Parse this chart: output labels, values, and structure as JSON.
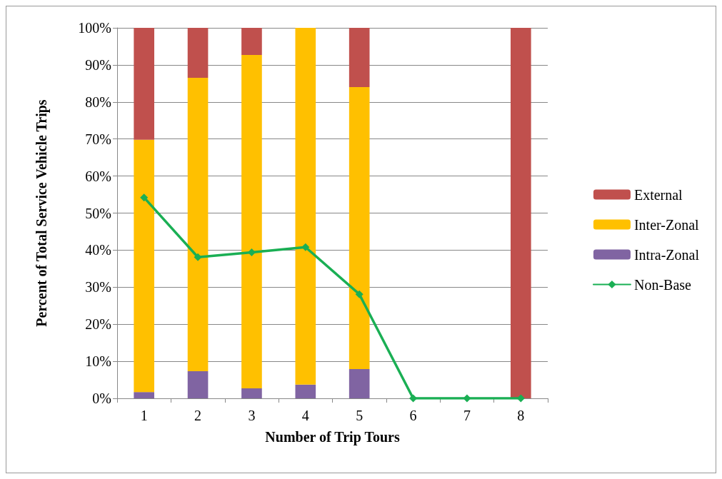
{
  "chart_data": {
    "type": "bar",
    "stacked": true,
    "xlabel": "Number of Trip Tours",
    "ylabel": "Percent of Total Service Vehicle Trips",
    "categories": [
      "1",
      "2",
      "3",
      "4",
      "5",
      "6",
      "7",
      "8"
    ],
    "series": [
      {
        "name": "Intra-Zonal",
        "color": "#8064a2",
        "values": [
          1.7,
          7.3,
          2.7,
          3.7,
          7.9,
          0,
          0,
          0
        ]
      },
      {
        "name": "Inter-Zonal",
        "color": "#ffc000",
        "values": [
          68.1,
          79.2,
          90,
          96.3,
          76.1,
          0,
          0,
          0
        ]
      },
      {
        "name": "External",
        "color": "#c0504d",
        "values": [
          30.2,
          13.5,
          7.3,
          0,
          16,
          0,
          0,
          100
        ]
      },
      {
        "name": "Non-Base",
        "type": "line",
        "color": "#1aaf54",
        "marker": "diamond",
        "line_style": "solid",
        "values": [
          54.2,
          38.1,
          39.4,
          40.8,
          28.1,
          0,
          0,
          0
        ]
      }
    ],
    "ylim": [
      0,
      100
    ],
    "yticks": [
      {
        "value": 0,
        "label": "0%"
      },
      {
        "value": 10,
        "label": "10%"
      },
      {
        "value": 20,
        "label": "20%"
      },
      {
        "value": 30,
        "label": "30%"
      },
      {
        "value": 40,
        "label": "40%"
      },
      {
        "value": 50,
        "label": "50%"
      },
      {
        "value": 60,
        "label": "60%"
      },
      {
        "value": 70,
        "label": "70%"
      },
      {
        "value": 80,
        "label": "80%"
      },
      {
        "value": 90,
        "label": "90%"
      },
      {
        "value": 100,
        "label": "100%"
      }
    ],
    "grid": "y",
    "legend": "right"
  }
}
